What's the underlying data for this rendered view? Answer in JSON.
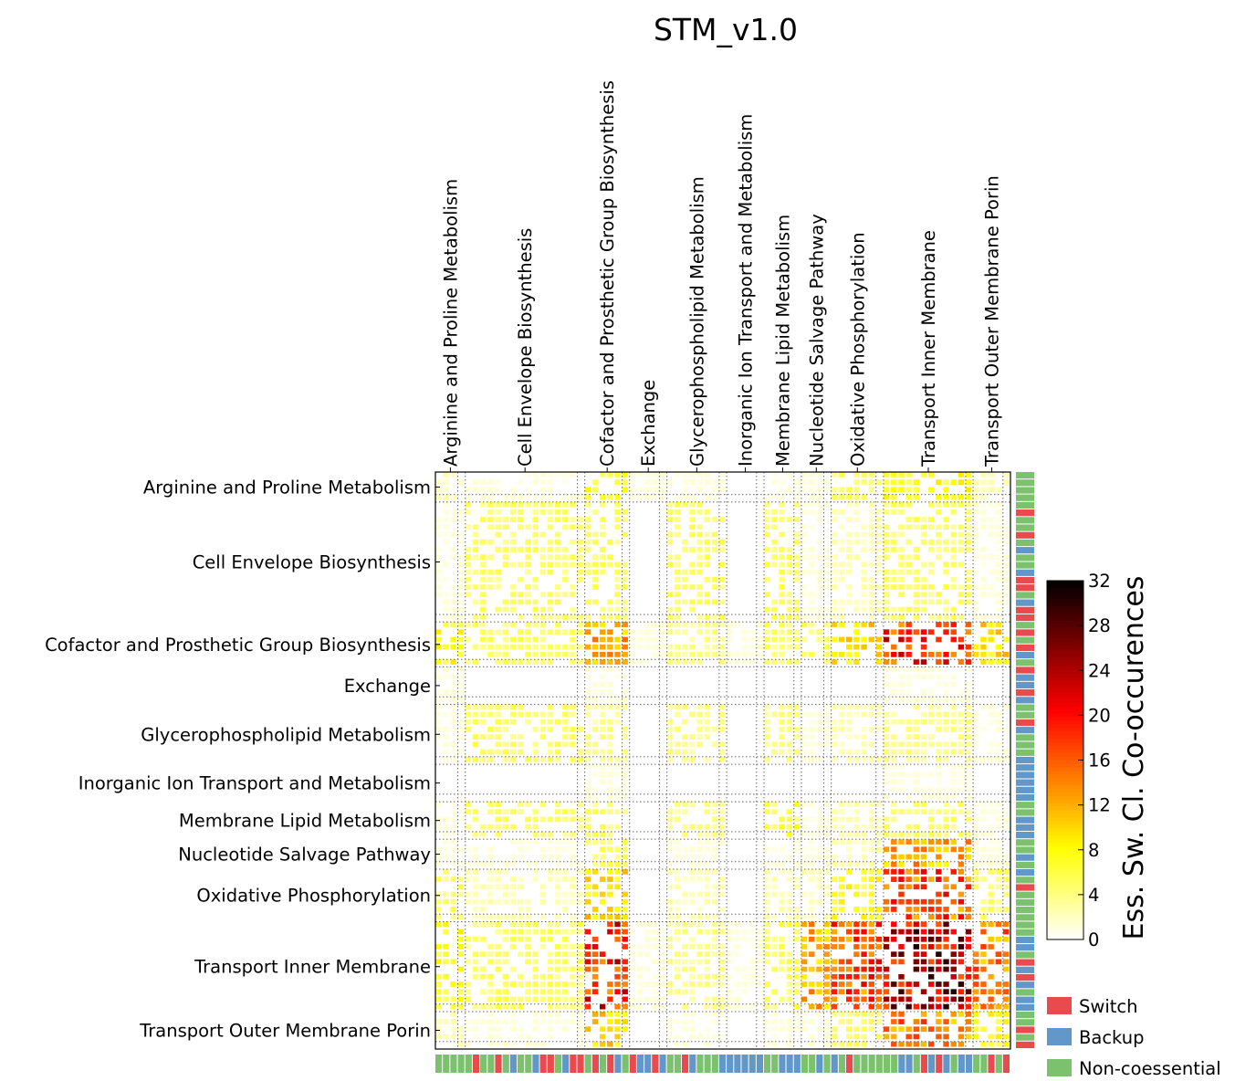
{
  "chart_data": {
    "type": "heatmap",
    "title": "STM_v1.0",
    "categories": [
      "Arginine and Proline Metabolism",
      "Cell Envelope Biosynthesis",
      "Cofactor and Prosthetic Group Biosynthesis",
      "Exchange",
      "Glycerophospholipid Metabolism",
      "Inorganic Ion Transport and Metabolism",
      "Membrane Lipid Metabolism",
      "Nucleotide Salvage Pathway",
      "Oxidative Phosphorylation",
      "Transport Inner Membrane",
      "Transport Outer Membrane Porin"
    ],
    "colorbar": {
      "label": "Ess. Sw. Cl. Co-occurences",
      "range": [
        0,
        32
      ],
      "ticks": [
        0,
        4,
        8,
        12,
        16,
        20,
        24,
        28,
        32
      ],
      "colormap": "hot_r"
    },
    "legend": [
      {
        "label": "Switch",
        "color": "#e84a4e"
      },
      {
        "label": "Backup",
        "color": "#6198c9"
      },
      {
        "label": "Non-coessential",
        "color": "#7cc16e"
      }
    ],
    "legend_position": "bottom-right",
    "grid": true,
    "annotation_colors": {
      "switch": "#e84a4e",
      "backup": "#6198c9",
      "noncoessential": "#7cc16e"
    },
    "blocks": [
      {
        "name": "Arginine and Proline Metabolism",
        "size": 4
      },
      {
        "name": "Cell Envelope Biosynthesis",
        "size": 16
      },
      {
        "name": "Cofactor and Prosthetic Group Biosynthesis",
        "size": 6
      },
      {
        "name": "Exchange",
        "size": 5
      },
      {
        "name": "Glycerophospholipid Metabolism",
        "size": 8
      },
      {
        "name": "Inorganic Ion Transport and Metabolism",
        "size": 5
      },
      {
        "name": "Membrane Lipid Metabolism",
        "size": 5
      },
      {
        "name": "Nucleotide Salvage Pathway",
        "size": 4
      },
      {
        "name": "Oxidative Phosphorylation",
        "size": 7
      },
      {
        "name": "Transport Inner Membrane",
        "size": 12
      },
      {
        "name": "Transport Outer Membrane Porin",
        "size": 5
      }
    ],
    "block_interaction": [
      [
        2,
        1,
        6,
        1,
        1,
        0,
        1,
        1,
        4,
        6,
        2
      ],
      [
        1,
        4,
        4,
        0,
        4,
        0,
        4,
        1,
        2,
        4,
        1
      ],
      [
        6,
        4,
        10,
        1,
        3,
        1,
        4,
        4,
        8,
        16,
        8
      ],
      [
        1,
        0,
        1,
        0,
        0,
        0,
        0,
        0,
        0,
        1,
        0
      ],
      [
        1,
        4,
        3,
        0,
        3,
        0,
        3,
        1,
        2,
        3,
        1
      ],
      [
        0,
        0,
        1,
        0,
        0,
        0,
        0,
        0,
        0,
        1,
        0
      ],
      [
        1,
        4,
        4,
        0,
        3,
        0,
        5,
        1,
        2,
        4,
        1
      ],
      [
        1,
        1,
        4,
        0,
        1,
        0,
        1,
        1,
        2,
        10,
        1
      ],
      [
        4,
        2,
        8,
        0,
        2,
        0,
        2,
        2,
        6,
        14,
        4
      ],
      [
        6,
        4,
        16,
        1,
        3,
        1,
        4,
        10,
        14,
        20,
        12
      ],
      [
        2,
        1,
        8,
        0,
        1,
        0,
        1,
        1,
        4,
        12,
        6
      ]
    ]
  }
}
